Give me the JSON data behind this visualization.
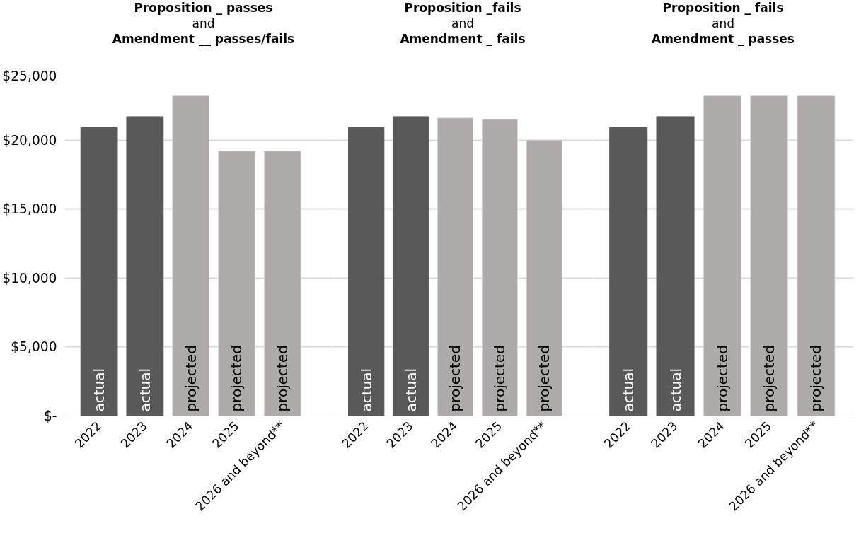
{
  "chart_data": [
    {
      "type": "bar",
      "title": "Proposition _ passes\nand\nAmendment __ passes/fails",
      "categories": [
        "2022",
        "2023",
        "2024",
        "2025",
        "2026 and beyond**"
      ],
      "series": [
        {
          "name": "actual",
          "color": "#595959",
          "values": [
            20900,
            21700,
            null,
            null,
            null
          ]
        },
        {
          "name": "projected",
          "color": "#aeaaaa",
          "values": [
            null,
            null,
            23200,
            19200,
            19200
          ]
        }
      ],
      "ylim": [
        0,
        25000
      ],
      "yticks": [
        {
          "value": 0,
          "label": "$-"
        },
        {
          "value": 5000,
          "label": "$5,000"
        },
        {
          "value": 10000,
          "label": "$10,000"
        },
        {
          "value": 15000,
          "label": "$15,000"
        },
        {
          "value": 20000,
          "label": "$20,000"
        },
        {
          "value": 25000,
          "label": "$25,000"
        }
      ],
      "grid": "y"
    },
    {
      "type": "bar",
      "title": "Proposition _fails\nand\nAmendment _ fails",
      "categories": [
        "2022",
        "2023",
        "2024",
        "2025",
        "2026 and beyond**"
      ],
      "series": [
        {
          "name": "actual",
          "color": "#595959",
          "values": [
            20900,
            21700,
            null,
            null,
            null
          ]
        },
        {
          "name": "projected",
          "color": "#aeaaaa",
          "values": [
            null,
            null,
            21600,
            21500,
            20000
          ]
        }
      ],
      "ylim": [
        0,
        25000
      ],
      "yticks": [
        0,
        5000,
        10000,
        15000,
        20000,
        25000
      ],
      "grid": "y",
      "tick_labels": "x"
    },
    {
      "type": "bar",
      "title": "Proposition _ fails\nand\nAmendment _ passes",
      "categories": [
        "2022",
        "2023",
        "2024",
        "2025",
        "2026 and beyond**"
      ],
      "series": [
        {
          "name": "actual",
          "color": "#595959",
          "values": [
            20900,
            21700,
            null,
            null,
            null
          ]
        },
        {
          "name": "projected",
          "color": "#aeaaaa",
          "values": [
            null,
            null,
            23200,
            23200,
            23200
          ]
        }
      ],
      "ylim": [
        0,
        25000
      ],
      "yticks": [
        0,
        5000,
        10000,
        15000,
        20000,
        25000
      ],
      "grid": "y",
      "tick_labels": "x"
    }
  ]
}
